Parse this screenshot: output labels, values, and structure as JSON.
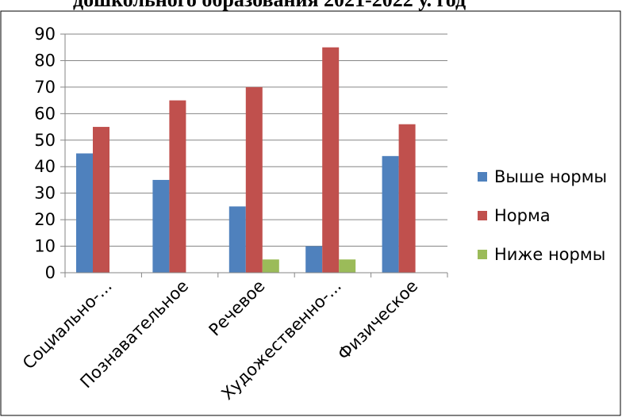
{
  "chart_data": {
    "type": "bar",
    "title": "дошкольного образования 2021-2022 у. год",
    "categories": [
      "Социально-...",
      "Познавательное",
      "Речевое",
      "Художественно-...",
      "Физическое"
    ],
    "series": [
      {
        "name": "Выше нормы",
        "color": "#4f81bd",
        "values": [
          45,
          35,
          25,
          10,
          44
        ]
      },
      {
        "name": "Норма",
        "color": "#c0504d",
        "values": [
          55,
          65,
          70,
          85,
          56
        ]
      },
      {
        "name": "Ниже нормы",
        "color": "#9bbb59",
        "values": [
          0,
          0,
          5,
          5,
          0
        ]
      }
    ],
    "ylim": [
      0,
      90
    ],
    "yticks": [
      0,
      10,
      20,
      30,
      40,
      50,
      60,
      70,
      80,
      90
    ],
    "grid": true,
    "legend": "right"
  }
}
